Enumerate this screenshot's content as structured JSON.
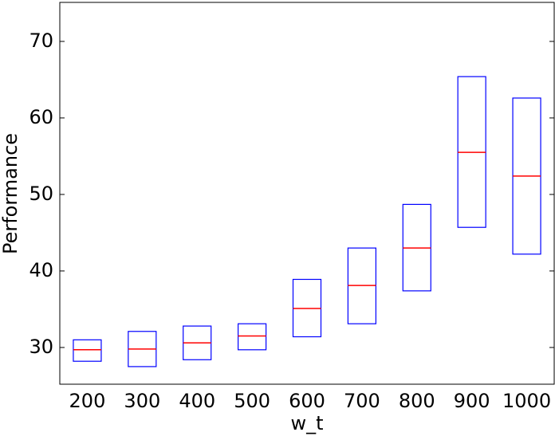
{
  "chart_data": {
    "type": "box",
    "xlabel": "w_t",
    "ylabel": "Performance",
    "categories": [
      "200",
      "300",
      "400",
      "500",
      "600",
      "700",
      "800",
      "900",
      "1000"
    ],
    "q1": [
      28.2,
      27.5,
      28.4,
      29.7,
      31.4,
      33.1,
      37.4,
      45.7,
      42.2
    ],
    "median": [
      29.7,
      29.8,
      30.6,
      31.5,
      35.1,
      38.1,
      43.0,
      55.5,
      52.4
    ],
    "q3": [
      31.0,
      32.1,
      32.8,
      33.1,
      38.9,
      43.0,
      48.7,
      65.4,
      62.6
    ],
    "box_color": "#0000ff",
    "median_color": "#ff0000",
    "ylim": [
      25.2,
      75.1
    ],
    "yticks": [
      30,
      40,
      50,
      60,
      70
    ]
  }
}
